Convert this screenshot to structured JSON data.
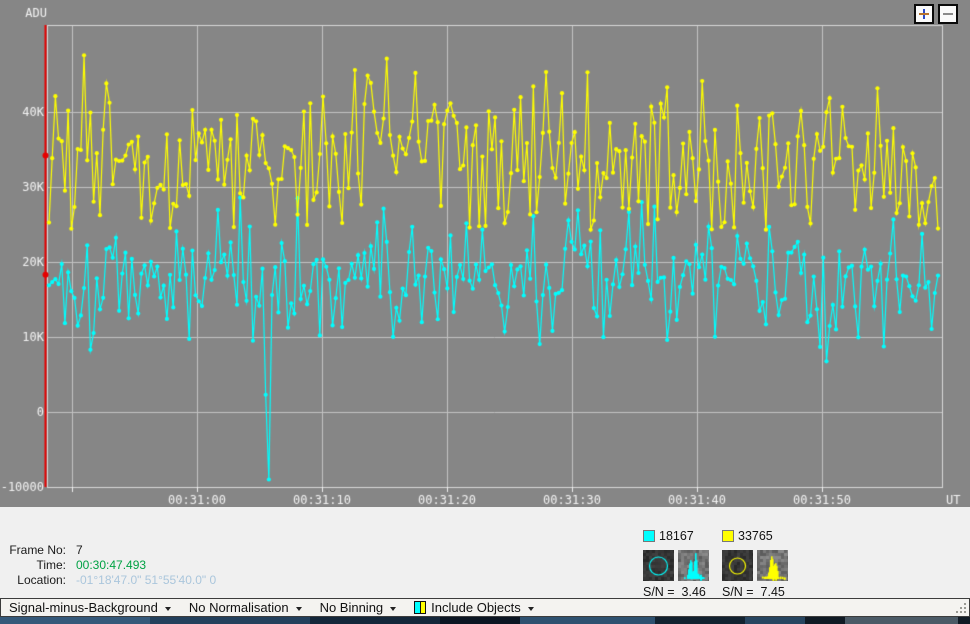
{
  "zoom_controls": {
    "plus": "+",
    "minus": "−"
  },
  "chart": {
    "bg": "#868686",
    "grid_color": "#c2c2c2",
    "frame_color": "#d8d8d8",
    "tick_color": "#efefef",
    "text_color": "#f2f2f2",
    "adu_label": "ADU",
    "ut_label": "UT"
  },
  "chart_data": {
    "type": "line",
    "title": "",
    "xlabel": "UT",
    "ylabel": "ADU",
    "ylim": [
      -10000,
      51600
    ],
    "x_start_time": "00:30:48",
    "x_span_seconds": 71.6,
    "y_ticks": [
      {
        "v": 40000,
        "label": "40K"
      },
      {
        "v": 30000,
        "label": "30K"
      },
      {
        "v": 20000,
        "label": "20K"
      },
      {
        "v": 10000,
        "label": "10K"
      },
      {
        "v": 0,
        "label": "0"
      },
      {
        "v": -10000,
        "label": "-10000"
      }
    ],
    "x_ticks": [
      {
        "t": 2,
        "label": ""
      },
      {
        "t": 12,
        "label": "00:31:00"
      },
      {
        "t": 22,
        "label": "00:31:10"
      },
      {
        "t": 32,
        "label": "00:31:20"
      },
      {
        "t": 42,
        "label": "00:31:30"
      },
      {
        "t": 52,
        "label": "00:31:40"
      },
      {
        "t": 62,
        "label": "00:31:50"
      }
    ],
    "series": [
      {
        "name": "18167",
        "color": "#00ffff",
        "mean": 18167,
        "sd": 4300,
        "min": 3900,
        "max": 28600,
        "count": 280,
        "seed": 1337,
        "overrides": [
          {
            "i": 68,
            "v": 2300
          },
          {
            "i": 69,
            "v": -9000
          },
          {
            "i": 70,
            "v": 15600
          }
        ]
      },
      {
        "name": "33765",
        "color": "#ffff00",
        "mean": 33765,
        "sd": 5100,
        "min": 24300,
        "max": 48800,
        "count": 280,
        "seed": 777,
        "overrides": []
      }
    ],
    "cursor": {
      "color": "#e60000",
      "frame_values": [
        18300,
        34200
      ]
    }
  },
  "status": {
    "rows": [
      {
        "label": "Frame No:",
        "value": "7",
        "color": "#1a1a1a"
      },
      {
        "label": "Time:",
        "value": "00:30:47.493",
        "color": "#00a244"
      },
      {
        "label": "Location:",
        "value": "-01°18'47.0\" 51°55'40.0\" 0",
        "color": "#aac6dc"
      }
    ]
  },
  "legend": [
    {
      "value": "18167",
      "color": "#00ffff",
      "sn_text": "S/N =  3.46",
      "aperture_radius": 9,
      "profile_peaks": [
        [
          12,
          1.5,
          20
        ],
        [
          17,
          1.2,
          26
        ],
        [
          15,
          4.5,
          7
        ]
      ],
      "seeds": [
        3,
        4
      ]
    },
    {
      "value": "33765",
      "color": "#ffff00",
      "sn_text": "S/N =  7.45",
      "aperture_radius": 8,
      "profile_peaks": [
        [
          14,
          1.8,
          23
        ],
        [
          18,
          1.5,
          17
        ],
        [
          16,
          4.5,
          6
        ]
      ],
      "seeds": [
        5,
        6
      ]
    }
  ],
  "toolbar": {
    "items": [
      {
        "label": "Signal-minus-Background"
      },
      {
        "label": "No Normalisation"
      },
      {
        "label": "No Binning"
      },
      {
        "label": "Include Objects"
      }
    ]
  }
}
